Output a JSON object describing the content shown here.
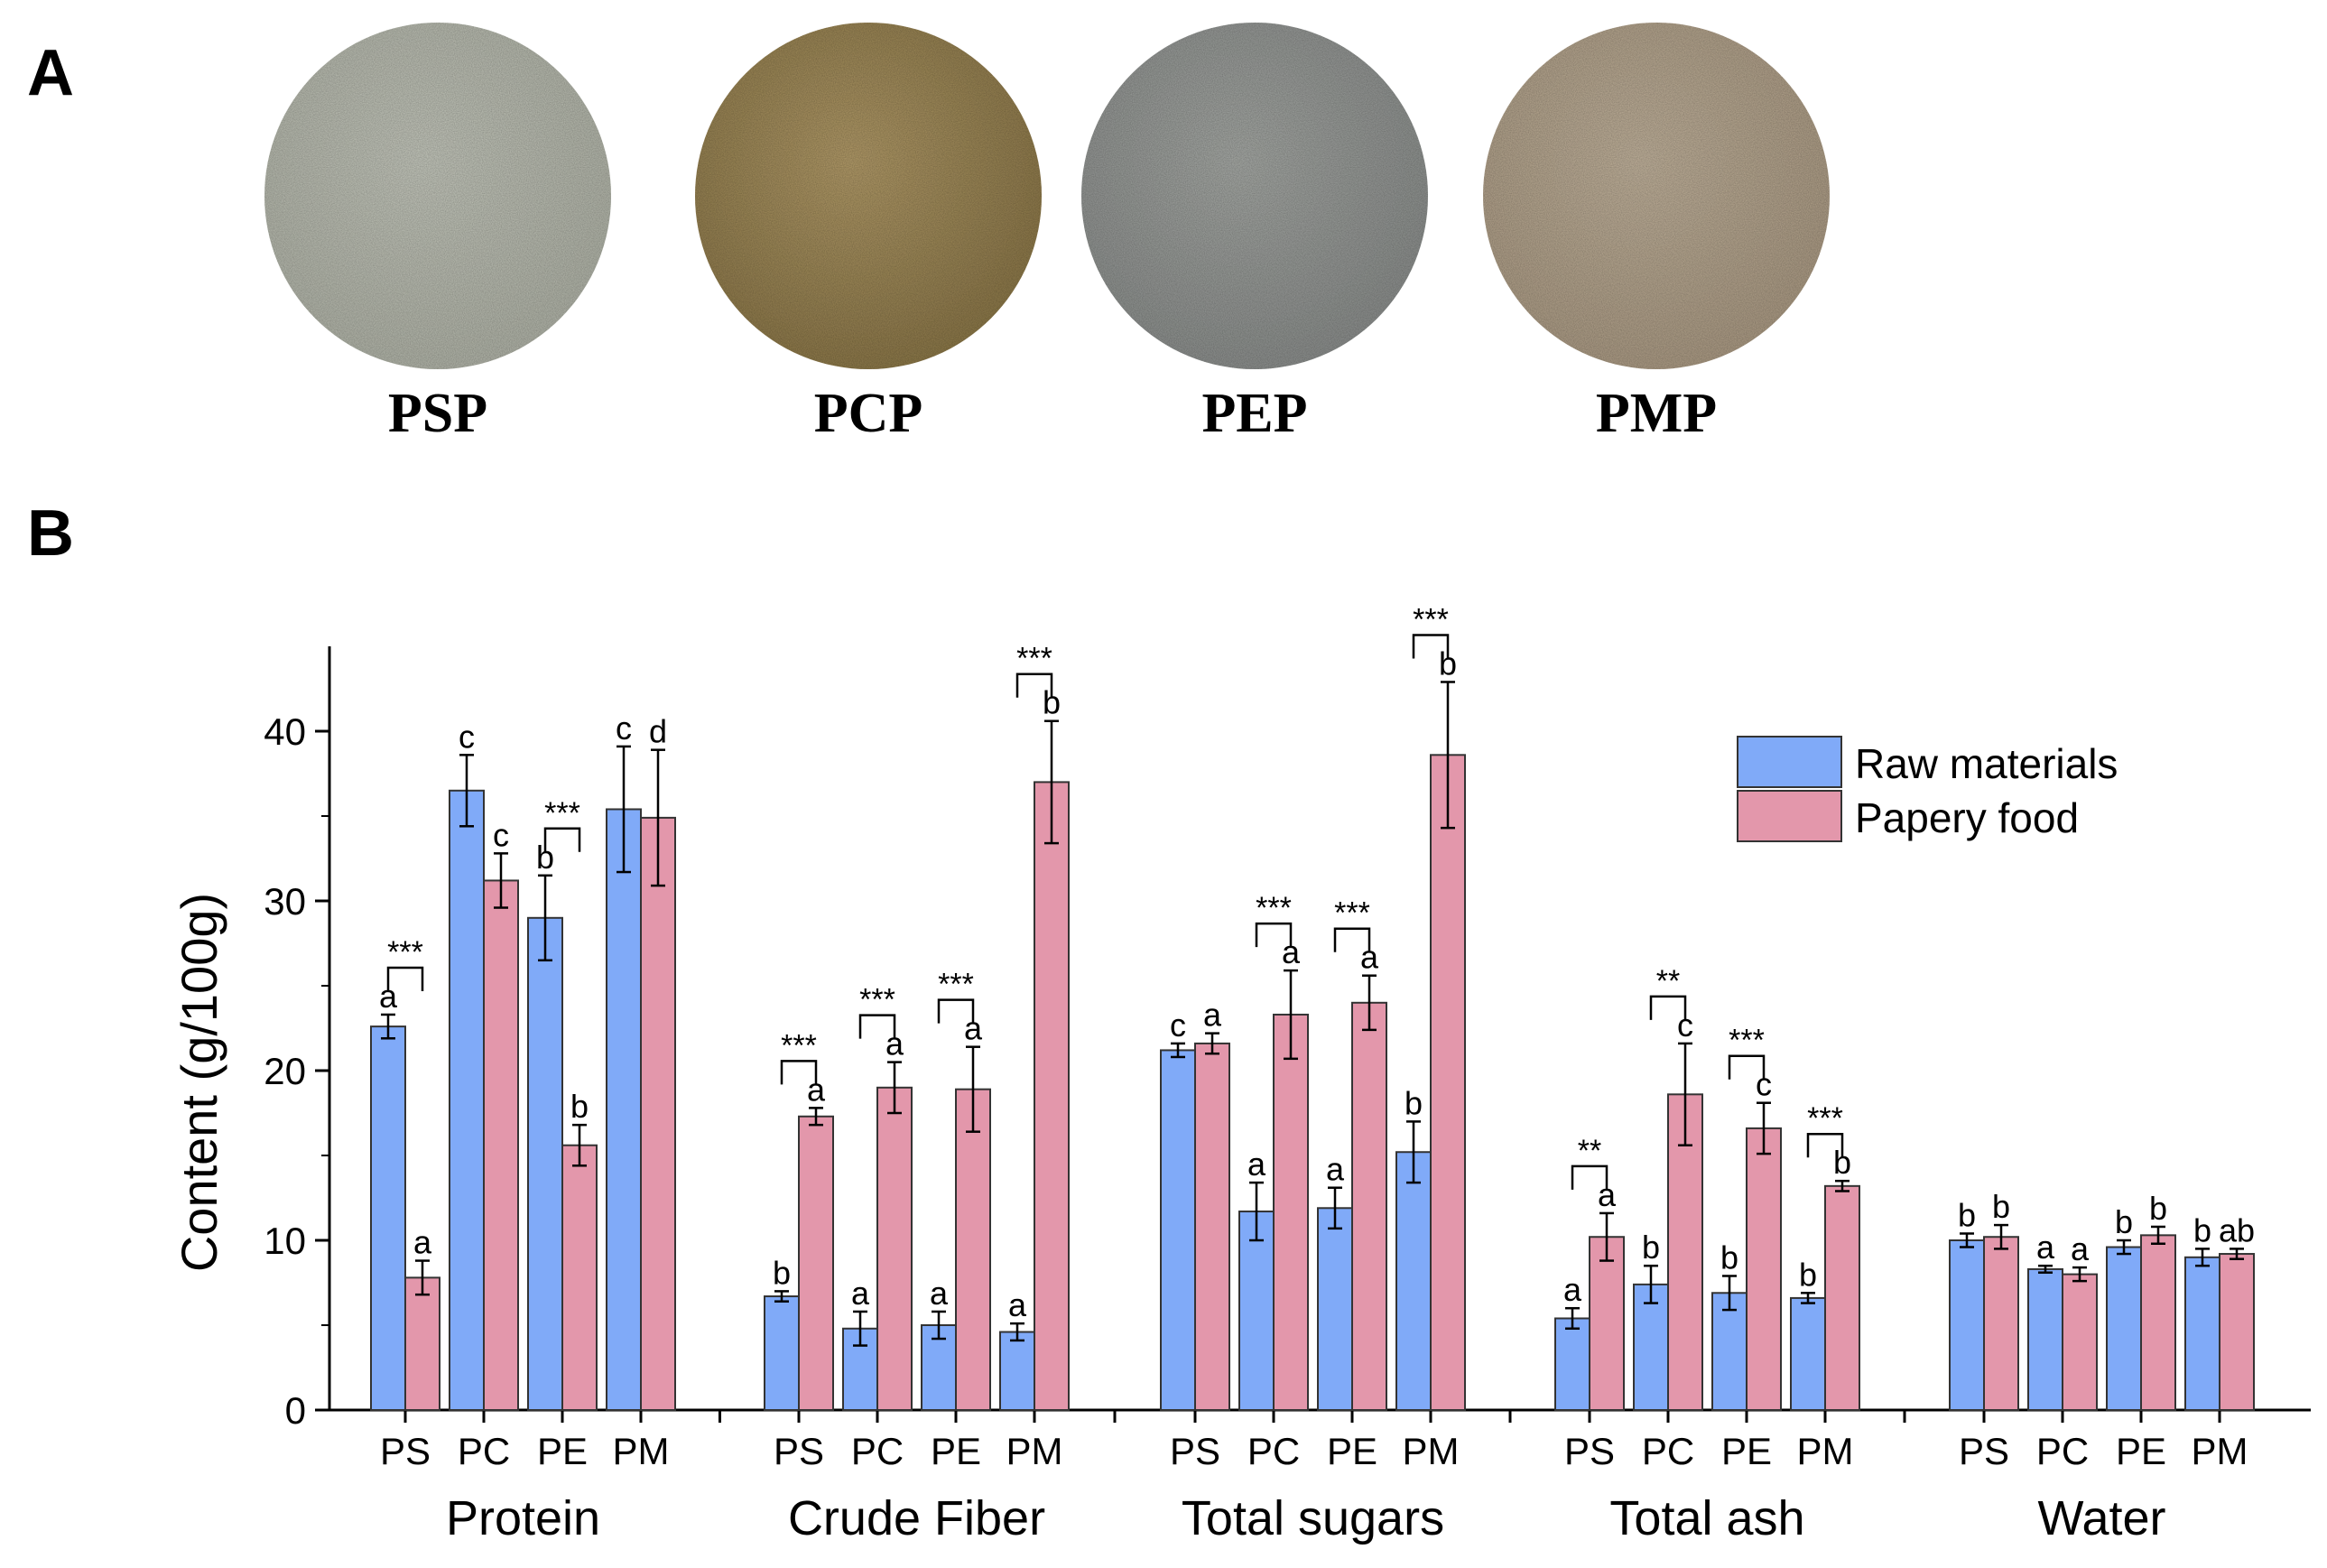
{
  "panel_a": {
    "letter": "A",
    "samples": [
      {
        "label": "PSP",
        "color": "#c5c8bd",
        "edge": "#b3b6aa",
        "speck": "#9ea290"
      },
      {
        "label": "PCP",
        "color": "#b39c6a",
        "edge": "#8e7a4c",
        "speck": "#6d5a30"
      },
      {
        "label": "PEP",
        "color": "#a7aaa6",
        "edge": "#8e918f",
        "speck": "#6f7480"
      },
      {
        "label": "PMP",
        "color": "#c2b39d",
        "edge": "#ad9d86",
        "speck": "#98886f"
      }
    ]
  },
  "panel_b": {
    "letter": "B"
  },
  "chart_data": {
    "type": "bar",
    "ylabel": "Content (g/100g)",
    "ylim": [
      0,
      45
    ],
    "yticks": [
      0,
      10,
      20,
      30,
      40
    ],
    "legend": {
      "position": "top-right",
      "entries": [
        "Raw materials",
        "Papery food"
      ]
    },
    "series_colors": [
      "#80aaf8",
      "#e397ab"
    ],
    "groups": [
      {
        "name": "Protein",
        "samples": [
          {
            "label": "PS",
            "raw": 22.6,
            "raw_err": 0.7,
            "raw_letter": "a",
            "paper": 7.8,
            "paper_err": 1.0,
            "paper_letter": "a",
            "sig": "***"
          },
          {
            "label": "PC",
            "raw": 36.5,
            "raw_err": 2.1,
            "raw_letter": "c",
            "paper": 31.2,
            "paper_err": 1.6,
            "paper_letter": "c",
            "sig": ""
          },
          {
            "label": "PE",
            "raw": 29.0,
            "raw_err": 2.5,
            "raw_letter": "b",
            "paper": 15.6,
            "paper_err": 1.2,
            "paper_letter": "b",
            "sig": "***"
          },
          {
            "label": "PM",
            "raw": 35.4,
            "raw_err": 3.7,
            "raw_letter": "c",
            "paper": 34.9,
            "paper_err": 4.0,
            "paper_letter": "d",
            "sig": ""
          }
        ]
      },
      {
        "name": "Crude Fiber",
        "samples": [
          {
            "label": "PS",
            "raw": 6.7,
            "raw_err": 0.3,
            "raw_letter": "b",
            "paper": 17.3,
            "paper_err": 0.5,
            "paper_letter": "a",
            "sig": "***"
          },
          {
            "label": "PC",
            "raw": 4.8,
            "raw_err": 1.0,
            "raw_letter": "a",
            "paper": 19.0,
            "paper_err": 1.5,
            "paper_letter": "a",
            "sig": "***"
          },
          {
            "label": "PE",
            "raw": 5.0,
            "raw_err": 0.8,
            "raw_letter": "a",
            "paper": 18.9,
            "paper_err": 2.5,
            "paper_letter": "a",
            "sig": "***"
          },
          {
            "label": "PM",
            "raw": 4.6,
            "raw_err": 0.5,
            "raw_letter": "a",
            "paper": 37.0,
            "paper_err": 3.6,
            "paper_letter": "b",
            "sig": "***"
          }
        ]
      },
      {
        "name": "Total sugars",
        "samples": [
          {
            "label": "PS",
            "raw": 21.2,
            "raw_err": 0.4,
            "raw_letter": "c",
            "paper": 21.6,
            "paper_err": 0.6,
            "paper_letter": "a",
            "sig": ""
          },
          {
            "label": "PC",
            "raw": 11.7,
            "raw_err": 1.7,
            "raw_letter": "a",
            "paper": 23.3,
            "paper_err": 2.6,
            "paper_letter": "a",
            "sig": "***"
          },
          {
            "label": "PE",
            "raw": 11.9,
            "raw_err": 1.2,
            "raw_letter": "a",
            "paper": 24.0,
            "paper_err": 1.6,
            "paper_letter": "a",
            "sig": "***"
          },
          {
            "label": "PM",
            "raw": 15.2,
            "raw_err": 1.8,
            "raw_letter": "b",
            "paper": 38.6,
            "paper_err": 4.3,
            "paper_letter": "b",
            "sig": "***"
          }
        ]
      },
      {
        "name": "Total ash",
        "samples": [
          {
            "label": "PS",
            "raw": 5.4,
            "raw_err": 0.6,
            "raw_letter": "a",
            "paper": 10.2,
            "paper_err": 1.4,
            "paper_letter": "a",
            "sig": "**"
          },
          {
            "label": "PC",
            "raw": 7.4,
            "raw_err": 1.1,
            "raw_letter": "b",
            "paper": 18.6,
            "paper_err": 3.0,
            "paper_letter": "c",
            "sig": "**"
          },
          {
            "label": "PE",
            "raw": 6.9,
            "raw_err": 1.0,
            "raw_letter": "b",
            "paper": 16.6,
            "paper_err": 1.5,
            "paper_letter": "c",
            "sig": "***"
          },
          {
            "label": "PM",
            "raw": 6.6,
            "raw_err": 0.3,
            "raw_letter": "b",
            "paper": 13.2,
            "paper_err": 0.3,
            "paper_letter": "b",
            "sig": "***"
          }
        ]
      },
      {
        "name": "Water",
        "samples": [
          {
            "label": "PS",
            "raw": 10.0,
            "raw_err": 0.4,
            "raw_letter": "b",
            "paper": 10.2,
            "paper_err": 0.7,
            "paper_letter": "b",
            "sig": ""
          },
          {
            "label": "PC",
            "raw": 8.3,
            "raw_err": 0.2,
            "raw_letter": "a",
            "paper": 8.0,
            "paper_err": 0.4,
            "paper_letter": "a",
            "sig": ""
          },
          {
            "label": "PE",
            "raw": 9.6,
            "raw_err": 0.4,
            "raw_letter": "b",
            "paper": 10.3,
            "paper_err": 0.5,
            "paper_letter": "b",
            "sig": ""
          },
          {
            "label": "PM",
            "raw": 9.0,
            "raw_err": 0.5,
            "raw_letter": "b",
            "paper": 9.2,
            "paper_err": 0.3,
            "paper_letter": "ab",
            "sig": ""
          }
        ]
      }
    ]
  }
}
